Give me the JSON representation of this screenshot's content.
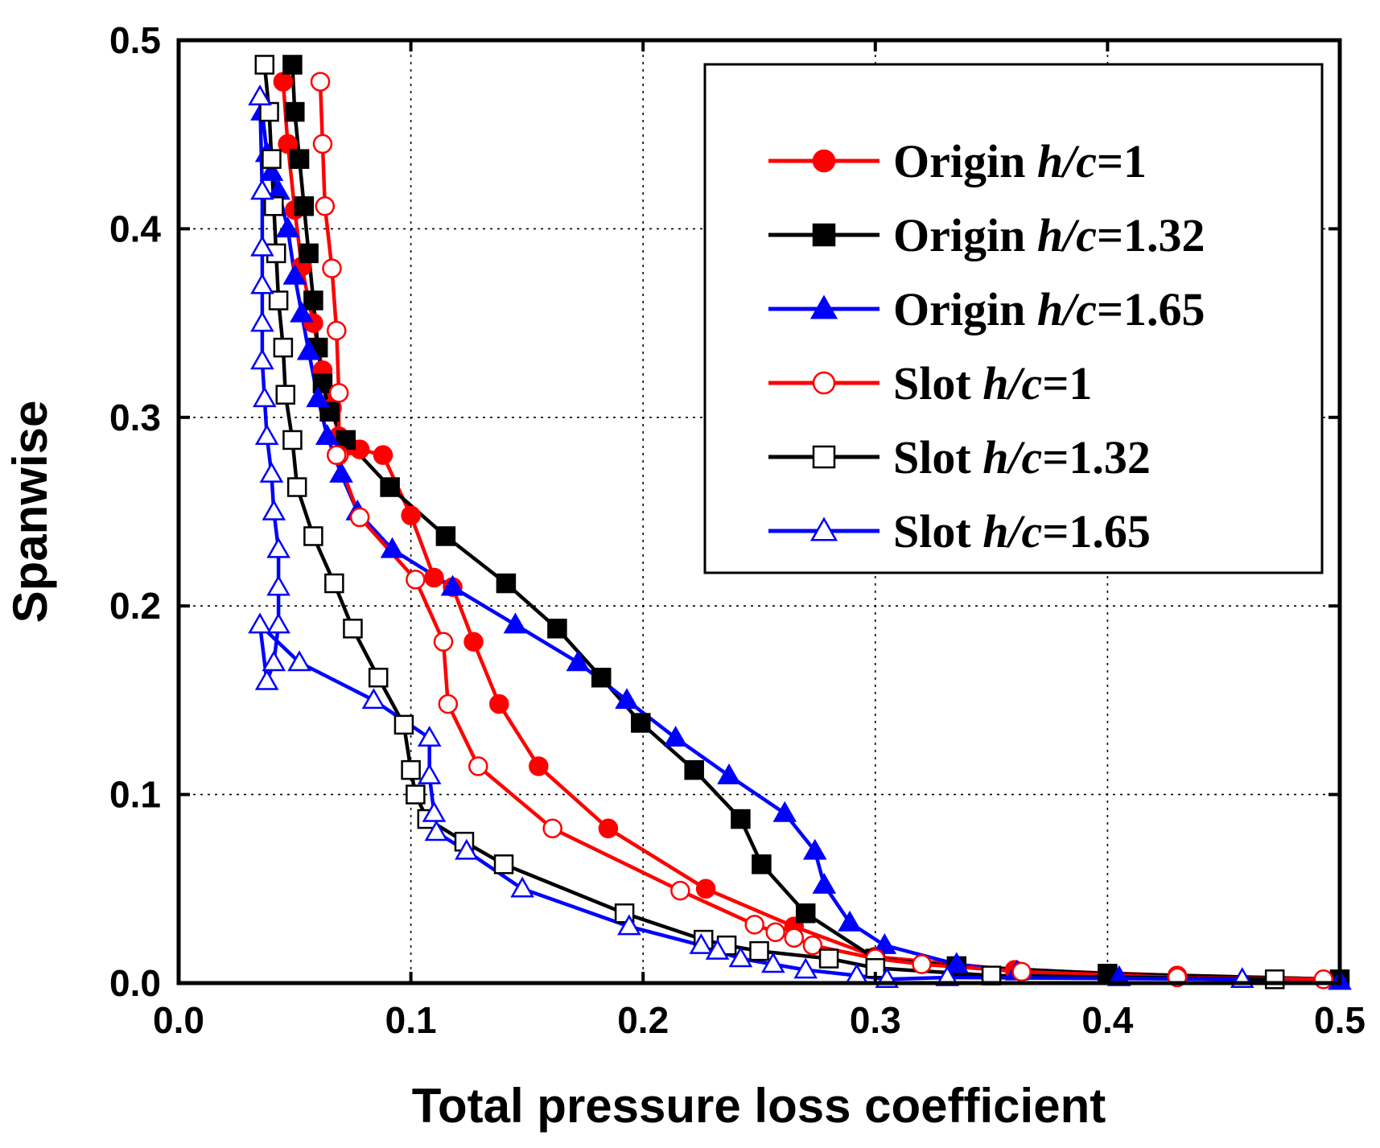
{
  "chart_data": {
    "type": "line",
    "title": "",
    "xlabel": "Total pressure loss coefficient",
    "ylabel": "Spanwise",
    "xlim": [
      0.0,
      0.5
    ],
    "ylim": [
      0.0,
      0.5
    ],
    "xticks": [
      "0.0",
      "0.1",
      "0.2",
      "0.3",
      "0.4",
      "0.5"
    ],
    "yticks": [
      "0.0",
      "0.1",
      "0.2",
      "0.3",
      "0.4",
      "0.5"
    ],
    "grid": true,
    "legend_position": "top-right",
    "series": [
      {
        "name": "Origin h/c=1",
        "prefix": "Origin ",
        "hc": "h/c",
        "suffix": "=1",
        "color": "#ff0000",
        "marker": "circle",
        "filled": true,
        "x": [
          0.045,
          0.047,
          0.05,
          0.053,
          0.058,
          0.062,
          0.066,
          0.069,
          0.073,
          0.078,
          0.088,
          0.1,
          0.11,
          0.118,
          0.127,
          0.138,
          0.155,
          0.185,
          0.227,
          0.265,
          0.3,
          0.36,
          0.43,
          0.5
        ],
        "y": [
          0.478,
          0.445,
          0.41,
          0.38,
          0.35,
          0.325,
          0.305,
          0.29,
          0.285,
          0.283,
          0.28,
          0.248,
          0.215,
          0.21,
          0.181,
          0.148,
          0.115,
          0.082,
          0.05,
          0.03,
          0.014,
          0.007,
          0.004,
          0.002
        ]
      },
      {
        "name": "Origin h/c=1.32",
        "prefix": "Origin ",
        "hc": "h/c",
        "suffix": "=1.32",
        "color": "#000000",
        "marker": "square",
        "filled": true,
        "x": [
          0.049,
          0.05,
          0.052,
          0.054,
          0.056,
          0.058,
          0.06,
          0.062,
          0.065,
          0.072,
          0.091,
          0.115,
          0.141,
          0.163,
          0.182,
          0.199,
          0.222,
          0.242,
          0.251,
          0.27,
          0.3,
          0.335,
          0.4,
          0.5
        ],
        "y": [
          0.487,
          0.462,
          0.437,
          0.412,
          0.387,
          0.362,
          0.337,
          0.318,
          0.303,
          0.288,
          0.263,
          0.237,
          0.212,
          0.188,
          0.162,
          0.138,
          0.113,
          0.087,
          0.063,
          0.037,
          0.013,
          0.009,
          0.005,
          0.002
        ]
      },
      {
        "name": "Origin h/c=1.65",
        "prefix": "Origin ",
        "hc": "h/c",
        "suffix": "=1.65",
        "color": "#0000ff",
        "marker": "triangle",
        "filled": true,
        "x": [
          0.036,
          0.038,
          0.04,
          0.043,
          0.047,
          0.05,
          0.053,
          0.056,
          0.06,
          0.064,
          0.07,
          0.077,
          0.092,
          0.118,
          0.145,
          0.172,
          0.193,
          0.214,
          0.237,
          0.261,
          0.274,
          0.278,
          0.289,
          0.304,
          0.335,
          0.361,
          0.405,
          0.5
        ],
        "y": [
          0.462,
          0.44,
          0.43,
          0.42,
          0.4,
          0.375,
          0.355,
          0.335,
          0.31,
          0.29,
          0.27,
          0.25,
          0.23,
          0.21,
          0.19,
          0.17,
          0.15,
          0.13,
          0.11,
          0.09,
          0.07,
          0.052,
          0.032,
          0.02,
          0.01,
          0.006,
          0.003,
          0.001
        ]
      },
      {
        "name": "Slot h/c=1",
        "prefix": "Slot ",
        "hc": "h/c",
        "suffix": "=1",
        "color": "#ff0000",
        "marker": "circle",
        "filled": false,
        "x": [
          0.061,
          0.062,
          0.063,
          0.066,
          0.068,
          0.069,
          0.069,
          0.068,
          0.078,
          0.102,
          0.114,
          0.116,
          0.129,
          0.161,
          0.216,
          0.248,
          0.257,
          0.265,
          0.273,
          0.3,
          0.32,
          0.363,
          0.43,
          0.493
        ],
        "y": [
          0.478,
          0.445,
          0.412,
          0.379,
          0.346,
          0.313,
          0.28,
          0.28,
          0.247,
          0.214,
          0.181,
          0.148,
          0.115,
          0.082,
          0.049,
          0.031,
          0.027,
          0.024,
          0.02,
          0.013,
          0.01,
          0.006,
          0.003,
          0.002
        ]
      },
      {
        "name": "Slot h/c=1.32",
        "prefix": "Slot ",
        "hc": "h/c",
        "suffix": "=1.32",
        "color": "#000000",
        "marker": "square",
        "filled": false,
        "x": [
          0.037,
          0.039,
          0.04,
          0.041,
          0.042,
          0.043,
          0.045,
          0.046,
          0.049,
          0.051,
          0.058,
          0.067,
          0.075,
          0.086,
          0.097,
          0.1,
          0.102,
          0.107,
          0.123,
          0.14,
          0.192,
          0.226,
          0.236,
          0.25,
          0.28,
          0.3,
          0.35,
          0.472
        ],
        "y": [
          0.487,
          0.462,
          0.437,
          0.412,
          0.387,
          0.362,
          0.337,
          0.312,
          0.288,
          0.263,
          0.237,
          0.212,
          0.188,
          0.162,
          0.137,
          0.113,
          0.1,
          0.087,
          0.075,
          0.063,
          0.037,
          0.023,
          0.02,
          0.017,
          0.013,
          0.008,
          0.004,
          0.002
        ]
      },
      {
        "name": "Slot h/c=1.65",
        "prefix": "Slot ",
        "hc": "h/c",
        "suffix": "=1.65",
        "color": "#0000ff",
        "marker": "triangle",
        "filled": false,
        "x": [
          0.035,
          0.036,
          0.036,
          0.036,
          0.036,
          0.036,
          0.037,
          0.038,
          0.04,
          0.041,
          0.043,
          0.043,
          0.043,
          0.041,
          0.038,
          0.035,
          0.052,
          0.084,
          0.108,
          0.108,
          0.11,
          0.111,
          0.124,
          0.148,
          0.194,
          0.225,
          0.232,
          0.242,
          0.256,
          0.27,
          0.292,
          0.305,
          0.331,
          0.458
        ],
        "y": [
          0.47,
          0.42,
          0.39,
          0.37,
          0.35,
          0.33,
          0.31,
          0.29,
          0.27,
          0.25,
          0.23,
          0.21,
          0.19,
          0.17,
          0.16,
          0.19,
          0.17,
          0.15,
          0.13,
          0.11,
          0.09,
          0.08,
          0.07,
          0.05,
          0.03,
          0.02,
          0.017,
          0.013,
          0.01,
          0.007,
          0.004,
          0.002,
          0.003,
          0.002
        ]
      }
    ]
  }
}
